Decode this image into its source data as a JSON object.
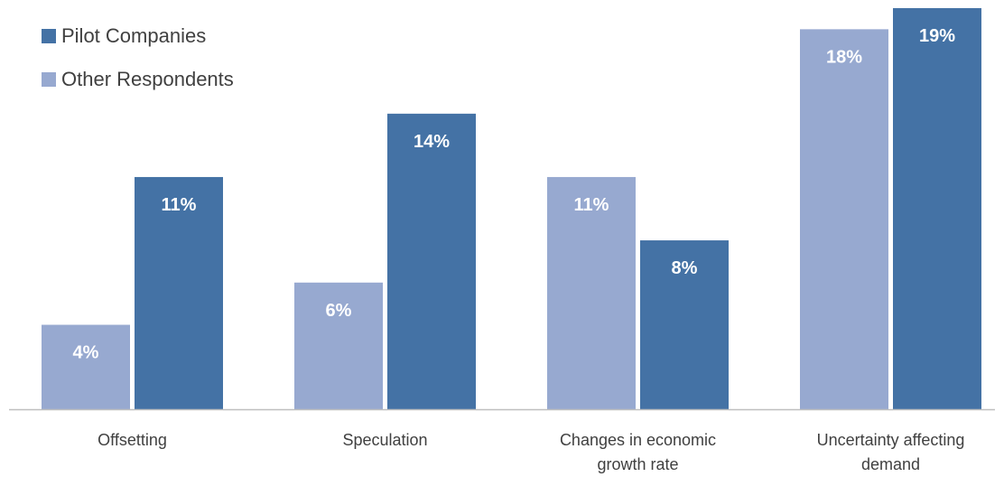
{
  "chart_data": {
    "type": "bar",
    "categories": [
      [
        "Offsetting"
      ],
      [
        "Speculation"
      ],
      [
        "Changes in economic",
        "growth rate"
      ],
      [
        "Uncertainty affecting",
        "demand"
      ]
    ],
    "series": [
      {
        "name": "Other Respondents",
        "color": "#97a9d0",
        "values": [
          4,
          6,
          11,
          18
        ],
        "labels": [
          "4%",
          "6%",
          "11%",
          "18%"
        ]
      },
      {
        "name": "Pilot Companies",
        "color": "#4472a5",
        "values": [
          11,
          14,
          8,
          19
        ],
        "labels": [
          "11%",
          "14%",
          "8%",
          "19%"
        ]
      }
    ],
    "ylim": [
      0,
      19
    ],
    "grid": false,
    "legend_placement": "top-left",
    "legend_order": [
      "Pilot Companies",
      "Other Respondents"
    ],
    "axis_color": "#bfbfbf",
    "label_color": "#ffffff",
    "tick_color": "#404040"
  }
}
